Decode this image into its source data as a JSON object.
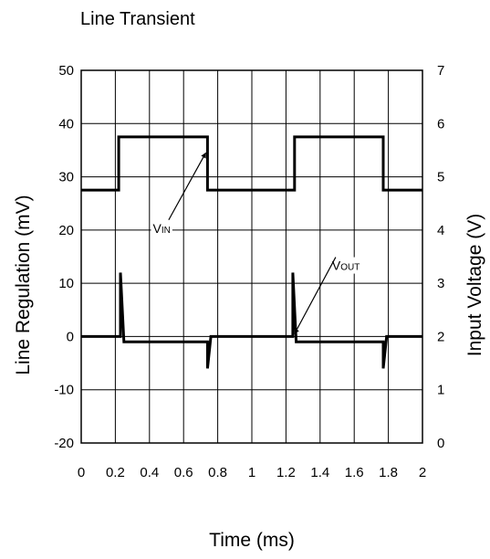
{
  "chart_data": {
    "type": "line",
    "title": "Line Transient",
    "xlabel": "Time (ms)",
    "ylabel_left": "Line Regulation (mV)",
    "ylabel_right": "Input Voltage (V)",
    "xlim": [
      0,
      2
    ],
    "ylim_left": [
      -20,
      50
    ],
    "ylim_right": [
      0,
      7
    ],
    "x_ticks": [
      "0",
      "0.2",
      "0.4",
      "0.6",
      "0.8",
      "1",
      "1.2",
      "1.4",
      "1.6",
      "1.8",
      "2"
    ],
    "y_ticks_left": [
      "-20",
      "-10",
      "0",
      "10",
      "20",
      "30",
      "40",
      "50"
    ],
    "y_ticks_right": [
      "0",
      "1",
      "2",
      "3",
      "4",
      "5",
      "6",
      "7"
    ],
    "grid": true,
    "series": [
      {
        "name": "VIN",
        "axis": "right",
        "points": [
          [
            0,
            4.75
          ],
          [
            0.22,
            4.75
          ],
          [
            0.22,
            5.75
          ],
          [
            0.74,
            5.75
          ],
          [
            0.74,
            4.75
          ],
          [
            1.25,
            4.75
          ],
          [
            1.25,
            5.75
          ],
          [
            1.77,
            5.75
          ],
          [
            1.77,
            4.75
          ],
          [
            2,
            4.75
          ]
        ]
      },
      {
        "name": "VOUT",
        "axis": "left",
        "points": [
          [
            0,
            0
          ],
          [
            0.23,
            0
          ],
          [
            0.23,
            12
          ],
          [
            0.25,
            -1
          ],
          [
            0.74,
            -1
          ],
          [
            0.74,
            -6
          ],
          [
            0.76,
            0
          ],
          [
            1.24,
            0
          ],
          [
            1.24,
            12
          ],
          [
            1.26,
            -1
          ],
          [
            1.77,
            -1
          ],
          [
            1.77,
            -6
          ],
          [
            1.79,
            0
          ],
          [
            2,
            0
          ]
        ]
      }
    ],
    "annotations": [
      {
        "main": "V",
        "sub": "IN",
        "series": "VIN",
        "point_to": [
          0.73,
          5.45
        ],
        "text_at": [
          0.42,
          3.95
        ]
      },
      {
        "main": "V",
        "sub": "OUT",
        "series": "VOUT",
        "point_to": [
          1.25,
          0.5
        ],
        "text_at": [
          1.47,
          12.5
        ]
      }
    ]
  }
}
